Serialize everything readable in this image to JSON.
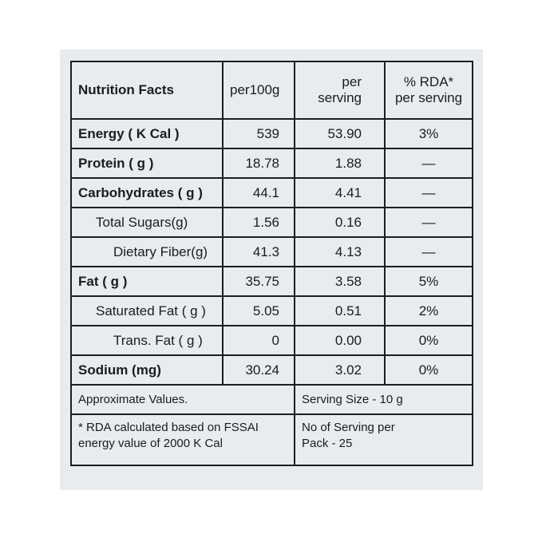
{
  "table": {
    "header": [
      "Nutrition Facts",
      "per100g",
      "per serving",
      "% RDA*\nper serving"
    ],
    "rows": [
      [
        "Energy ( K Cal )",
        "539",
        "53.90",
        "3%"
      ],
      [
        "Protein ( g )",
        "18.78",
        "1.88",
        "—"
      ],
      [
        "Carbohydrates ( g )",
        "44.1",
        "4.41",
        "—"
      ],
      [
        "Total Sugars(g)",
        "1.56",
        "0.16",
        "—"
      ],
      [
        "Dietary Fiber(g)",
        "41.3",
        "4.13",
        "—"
      ],
      [
        "Fat ( g )",
        "35.75",
        "3.58",
        "5%"
      ],
      [
        "Saturated Fat ( g )",
        "5.05",
        "0.51",
        "2%"
      ],
      [
        "Trans. Fat ( g )",
        "0",
        "0.00",
        "0%"
      ],
      [
        "Sodium (mg)",
        "30.24",
        "3.02",
        "0%"
      ]
    ],
    "footer": [
      [
        "Approximate Values.",
        "Serving Size - 10 g"
      ],
      [
        "* RDA calculated based on FSSAI\nenergy value of 2000 K Cal",
        "No of Serving per\nPack - 25"
      ]
    ]
  }
}
